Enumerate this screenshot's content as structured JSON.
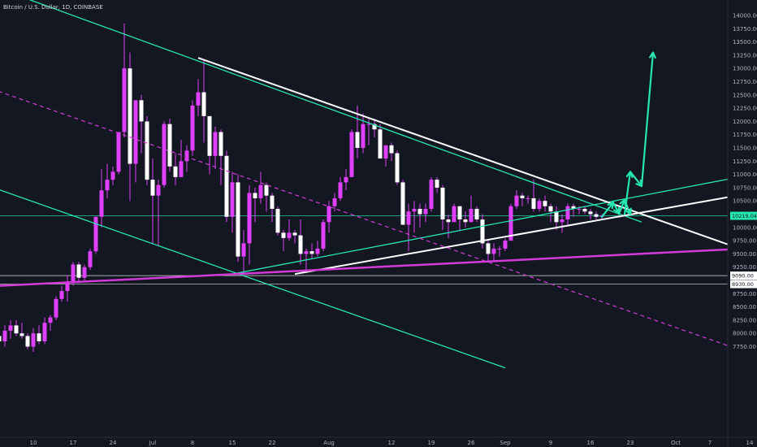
{
  "header": {
    "symbol_title": "Bitcoin / U.S. Dollar, 1D, COINBASE"
  },
  "colors": {
    "background": "#131722",
    "candle_up": "#e040fb",
    "candle_wick": "#e040fb",
    "candle_down": "#ffffff",
    "channel_line": "#26e6b0",
    "trend_white": "#ffffff",
    "trend_magenta": "#d33ad8",
    "price_tag_bg": "#ffffff",
    "price_tag_text": "#131722",
    "current_tag_bg": "#26e6b0"
  },
  "chart_data": {
    "type": "candlestick",
    "title": "Bitcoin / U.S. Dollar, 1D, COINBASE",
    "x_tick_labels": [
      "10",
      "17",
      "24",
      "Jul",
      "8",
      "15",
      "22",
      "Aug",
      "12",
      "19",
      "26",
      "Sep",
      "9",
      "16",
      "23",
      "Oct",
      "7",
      "14"
    ],
    "y_tick_labels": [
      "14000.00",
      "13750.00",
      "13500.00",
      "13250.00",
      "13000.00",
      "12750.00",
      "12500.00",
      "12250.00",
      "12000.00",
      "11750.00",
      "11500.00",
      "11250.00",
      "11000.00",
      "10750.00",
      "10500.00",
      "10250.00",
      "10000.00",
      "9750.00",
      "9500.00",
      "9250.00",
      "9000.00",
      "8750.00",
      "8500.00",
      "8250.00",
      "8000.00",
      "7750.00"
    ],
    "ylim": [
      7650,
      14150
    ],
    "price_tags": [
      {
        "label": "10219.04",
        "value": 10219.04,
        "kind": "current"
      },
      {
        "label": "9090.00",
        "value": 9090,
        "kind": "level"
      },
      {
        "label": "8930.00",
        "value": 8930,
        "kind": "level"
      }
    ],
    "horizontal_levels": [
      10219.04,
      9090,
      8930
    ],
    "candles": [
      {
        "d": "2019-06-03",
        "o": 8100,
        "h": 8250,
        "l": 7750,
        "c": 7950
      },
      {
        "d": "2019-06-04",
        "o": 7950,
        "h": 8100,
        "l": 7700,
        "c": 7850
      },
      {
        "d": "2019-06-05",
        "o": 7850,
        "h": 8150,
        "l": 7750,
        "c": 8050
      },
      {
        "d": "2019-06-06",
        "o": 8050,
        "h": 8250,
        "l": 7900,
        "c": 8150
      },
      {
        "d": "2019-06-07",
        "o": 8150,
        "h": 8250,
        "l": 7950,
        "c": 8000
      },
      {
        "d": "2019-06-08",
        "o": 8000,
        "h": 8200,
        "l": 7900,
        "c": 7950
      },
      {
        "d": "2019-06-09",
        "o": 7950,
        "h": 8000,
        "l": 7700,
        "c": 7750
      },
      {
        "d": "2019-06-10",
        "o": 7750,
        "h": 8100,
        "l": 7650,
        "c": 8000
      },
      {
        "d": "2019-06-11",
        "o": 8000,
        "h": 8150,
        "l": 7800,
        "c": 7850
      },
      {
        "d": "2019-06-12",
        "o": 7850,
        "h": 8300,
        "l": 7800,
        "c": 8200
      },
      {
        "d": "2019-06-13",
        "o": 8200,
        "h": 8350,
        "l": 8050,
        "c": 8300
      },
      {
        "d": "2019-06-14",
        "o": 8300,
        "h": 8700,
        "l": 8250,
        "c": 8650
      },
      {
        "d": "2019-06-15",
        "o": 8650,
        "h": 8900,
        "l": 8600,
        "c": 8800
      },
      {
        "d": "2019-06-16",
        "o": 8800,
        "h": 9100,
        "l": 8600,
        "c": 8950
      },
      {
        "d": "2019-06-17",
        "o": 8950,
        "h": 9350,
        "l": 8900,
        "c": 9300
      },
      {
        "d": "2019-06-18",
        "o": 9300,
        "h": 9350,
        "l": 8950,
        "c": 9050
      },
      {
        "d": "2019-06-19",
        "o": 9050,
        "h": 9300,
        "l": 9000,
        "c": 9250
      },
      {
        "d": "2019-06-20",
        "o": 9250,
        "h": 9600,
        "l": 9200,
        "c": 9550
      },
      {
        "d": "2019-06-21",
        "o": 9550,
        "h": 10200,
        "l": 9500,
        "c": 10200
      },
      {
        "d": "2019-06-22",
        "o": 10200,
        "h": 11100,
        "l": 10000,
        "c": 10700
      },
      {
        "d": "2019-06-23",
        "o": 10700,
        "h": 11200,
        "l": 10550,
        "c": 10900
      },
      {
        "d": "2019-06-24",
        "o": 10900,
        "h": 11150,
        "l": 10800,
        "c": 11050
      },
      {
        "d": "2019-06-25",
        "o": 11050,
        "h": 11800,
        "l": 11000,
        "c": 11800
      },
      {
        "d": "2019-06-26",
        "o": 11800,
        "h": 13850,
        "l": 11700,
        "c": 13000
      },
      {
        "d": "2019-06-27",
        "o": 13000,
        "h": 13300,
        "l": 10500,
        "c": 11200
      },
      {
        "d": "2019-06-28",
        "o": 11200,
        "h": 12400,
        "l": 10850,
        "c": 12400
      },
      {
        "d": "2019-06-29",
        "o": 12400,
        "h": 12500,
        "l": 11400,
        "c": 12000
      },
      {
        "d": "2019-06-30",
        "o": 12000,
        "h": 12100,
        "l": 10800,
        "c": 10900
      },
      {
        "d": "2019-07-01",
        "o": 10900,
        "h": 11300,
        "l": 9700,
        "c": 10600
      },
      {
        "d": "2019-07-02",
        "o": 10600,
        "h": 10900,
        "l": 9650,
        "c": 10800
      },
      {
        "d": "2019-07-03",
        "o": 10800,
        "h": 12000,
        "l": 10750,
        "c": 11950
      },
      {
        "d": "2019-07-04",
        "o": 11950,
        "h": 12050,
        "l": 11050,
        "c": 11150
      },
      {
        "d": "2019-07-05",
        "o": 11150,
        "h": 11400,
        "l": 10800,
        "c": 10950
      },
      {
        "d": "2019-07-06",
        "o": 10950,
        "h": 11650,
        "l": 10950,
        "c": 11250
      },
      {
        "d": "2019-07-07",
        "o": 11250,
        "h": 11550,
        "l": 11050,
        "c": 11450
      },
      {
        "d": "2019-07-08",
        "o": 11450,
        "h": 12400,
        "l": 11350,
        "c": 12300
      },
      {
        "d": "2019-07-09",
        "o": 12300,
        "h": 12800,
        "l": 12100,
        "c": 12550
      },
      {
        "d": "2019-07-10",
        "o": 12550,
        "h": 13150,
        "l": 11600,
        "c": 12100
      },
      {
        "d": "2019-07-11",
        "o": 12100,
        "h": 12100,
        "l": 11000,
        "c": 11350
      },
      {
        "d": "2019-07-12",
        "o": 11350,
        "h": 11900,
        "l": 11100,
        "c": 11800
      },
      {
        "d": "2019-07-13",
        "o": 11800,
        "h": 11850,
        "l": 10800,
        "c": 11350
      },
      {
        "d": "2019-07-14",
        "o": 11350,
        "h": 11450,
        "l": 10100,
        "c": 10200
      },
      {
        "d": "2019-07-15",
        "o": 10200,
        "h": 11050,
        "l": 9900,
        "c": 10850
      },
      {
        "d": "2019-07-16",
        "o": 10850,
        "h": 11000,
        "l": 9350,
        "c": 9450
      },
      {
        "d": "2019-07-17",
        "o": 9450,
        "h": 9950,
        "l": 9100,
        "c": 9700
      },
      {
        "d": "2019-07-18",
        "o": 9700,
        "h": 10800,
        "l": 9300,
        "c": 10650
      },
      {
        "d": "2019-07-19",
        "o": 10650,
        "h": 10750,
        "l": 10100,
        "c": 10550
      },
      {
        "d": "2019-07-20",
        "o": 10550,
        "h": 11050,
        "l": 10450,
        "c": 10800
      },
      {
        "d": "2019-07-21",
        "o": 10800,
        "h": 10850,
        "l": 10300,
        "c": 10600
      },
      {
        "d": "2019-07-22",
        "o": 10600,
        "h": 10650,
        "l": 10100,
        "c": 10350
      },
      {
        "d": "2019-07-23",
        "o": 10350,
        "h": 10400,
        "l": 9850,
        "c": 9900
      },
      {
        "d": "2019-07-24",
        "o": 9900,
        "h": 9950,
        "l": 9550,
        "c": 9800
      },
      {
        "d": "2019-07-25",
        "o": 9800,
        "h": 10150,
        "l": 9750,
        "c": 9900
      },
      {
        "d": "2019-07-26",
        "o": 9900,
        "h": 9950,
        "l": 9700,
        "c": 9850
      },
      {
        "d": "2019-07-27",
        "o": 9850,
        "h": 10150,
        "l": 9300,
        "c": 9500
      },
      {
        "d": "2019-07-28",
        "o": 9500,
        "h": 9600,
        "l": 9150,
        "c": 9550
      },
      {
        "d": "2019-07-29",
        "o": 9550,
        "h": 9700,
        "l": 9400,
        "c": 9500
      },
      {
        "d": "2019-07-30",
        "o": 9500,
        "h": 9750,
        "l": 9450,
        "c": 9600
      },
      {
        "d": "2019-07-31",
        "o": 9600,
        "h": 10150,
        "l": 9550,
        "c": 10100
      },
      {
        "d": "2019-08-01",
        "o": 10100,
        "h": 10500,
        "l": 9900,
        "c": 10400
      },
      {
        "d": "2019-08-02",
        "o": 10400,
        "h": 10650,
        "l": 10300,
        "c": 10550
      },
      {
        "d": "2019-08-03",
        "o": 10550,
        "h": 10950,
        "l": 10500,
        "c": 10850
      },
      {
        "d": "2019-08-04",
        "o": 10850,
        "h": 11100,
        "l": 10700,
        "c": 10950
      },
      {
        "d": "2019-08-05",
        "o": 10950,
        "h": 11850,
        "l": 10950,
        "c": 11800
      },
      {
        "d": "2019-08-06",
        "o": 11800,
        "h": 12300,
        "l": 11300,
        "c": 11500
      },
      {
        "d": "2019-08-07",
        "o": 11500,
        "h": 12150,
        "l": 11400,
        "c": 11950
      },
      {
        "d": "2019-08-08",
        "o": 11950,
        "h": 12050,
        "l": 11550,
        "c": 11950
      },
      {
        "d": "2019-08-09",
        "o": 11950,
        "h": 12050,
        "l": 11700,
        "c": 11850
      },
      {
        "d": "2019-08-10",
        "o": 11850,
        "h": 11950,
        "l": 11300,
        "c": 11300
      },
      {
        "d": "2019-08-11",
        "o": 11300,
        "h": 11550,
        "l": 11150,
        "c": 11550
      },
      {
        "d": "2019-08-12",
        "o": 11550,
        "h": 11600,
        "l": 11250,
        "c": 11400
      },
      {
        "d": "2019-08-13",
        "o": 11400,
        "h": 11450,
        "l": 10800,
        "c": 10850
      },
      {
        "d": "2019-08-14",
        "o": 10850,
        "h": 10900,
        "l": 10050,
        "c": 10050
      },
      {
        "d": "2019-08-15",
        "o": 10050,
        "h": 10450,
        "l": 9550,
        "c": 10300
      },
      {
        "d": "2019-08-16",
        "o": 10300,
        "h": 10500,
        "l": 9900,
        "c": 10350
      },
      {
        "d": "2019-08-17",
        "o": 10350,
        "h": 10450,
        "l": 10000,
        "c": 10250
      },
      {
        "d": "2019-08-18",
        "o": 10250,
        "h": 10450,
        "l": 10100,
        "c": 10350
      },
      {
        "d": "2019-08-19",
        "o": 10350,
        "h": 10950,
        "l": 10300,
        "c": 10900
      },
      {
        "d": "2019-08-20",
        "o": 10900,
        "h": 10950,
        "l": 10650,
        "c": 10750
      },
      {
        "d": "2019-08-21",
        "o": 10750,
        "h": 10800,
        "l": 9950,
        "c": 10150
      },
      {
        "d": "2019-08-22",
        "o": 10150,
        "h": 10250,
        "l": 9800,
        "c": 10100
      },
      {
        "d": "2019-08-23",
        "o": 10100,
        "h": 10450,
        "l": 10100,
        "c": 10400
      },
      {
        "d": "2019-08-24",
        "o": 10400,
        "h": 10400,
        "l": 9950,
        "c": 10150
      },
      {
        "d": "2019-08-25",
        "o": 10150,
        "h": 10300,
        "l": 10000,
        "c": 10100
      },
      {
        "d": "2019-08-26",
        "o": 10100,
        "h": 10600,
        "l": 10100,
        "c": 10350
      },
      {
        "d": "2019-08-27",
        "o": 10350,
        "h": 10400,
        "l": 10100,
        "c": 10150
      },
      {
        "d": "2019-08-28",
        "o": 10150,
        "h": 10250,
        "l": 9600,
        "c": 9700
      },
      {
        "d": "2019-08-29",
        "o": 9700,
        "h": 9750,
        "l": 9350,
        "c": 9500
      },
      {
        "d": "2019-08-30",
        "o": 9500,
        "h": 9700,
        "l": 9350,
        "c": 9600
      },
      {
        "d": "2019-08-31",
        "o": 9600,
        "h": 9650,
        "l": 9450,
        "c": 9600
      },
      {
        "d": "2019-09-01",
        "o": 9600,
        "h": 9800,
        "l": 9550,
        "c": 9750
      },
      {
        "d": "2019-09-02",
        "o": 9750,
        "h": 10450,
        "l": 9750,
        "c": 10400
      },
      {
        "d": "2019-09-03",
        "o": 10400,
        "h": 10700,
        "l": 10350,
        "c": 10600
      },
      {
        "d": "2019-09-04",
        "o": 10600,
        "h": 10650,
        "l": 10400,
        "c": 10550
      },
      {
        "d": "2019-09-05",
        "o": 10550,
        "h": 10600,
        "l": 10450,
        "c": 10550
      },
      {
        "d": "2019-09-06",
        "o": 10550,
        "h": 10900,
        "l": 10300,
        "c": 10350
      },
      {
        "d": "2019-09-07",
        "o": 10350,
        "h": 10550,
        "l": 10300,
        "c": 10500
      },
      {
        "d": "2019-09-08",
        "o": 10500,
        "h": 10600,
        "l": 10300,
        "c": 10400
      },
      {
        "d": "2019-09-09",
        "o": 10400,
        "h": 10450,
        "l": 10100,
        "c": 10300
      },
      {
        "d": "2019-09-10",
        "o": 10300,
        "h": 10400,
        "l": 9950,
        "c": 10100
      },
      {
        "d": "2019-09-11",
        "o": 10100,
        "h": 10250,
        "l": 9900,
        "c": 10150
      },
      {
        "d": "2019-09-12",
        "o": 10150,
        "h": 10450,
        "l": 10050,
        "c": 10400
      },
      {
        "d": "2019-09-13",
        "o": 10400,
        "h": 10450,
        "l": 10200,
        "c": 10350
      },
      {
        "d": "2019-09-14",
        "o": 10350,
        "h": 10400,
        "l": 10250,
        "c": 10350
      },
      {
        "d": "2019-09-15",
        "o": 10350,
        "h": 10400,
        "l": 10250,
        "c": 10300
      },
      {
        "d": "2019-09-16",
        "o": 10300,
        "h": 10350,
        "l": 10150,
        "c": 10250
      },
      {
        "d": "2019-09-17",
        "o": 10250,
        "h": 10300,
        "l": 10150,
        "c": 10200
      },
      {
        "d": "2019-09-18",
        "o": 10200,
        "h": 10250,
        "l": 10150,
        "c": 10219
      }
    ],
    "trendlines": [
      {
        "name": "channel-upper",
        "kind": "channel",
        "from": [
          "2019-05-30",
          14700
        ],
        "to": [
          "2019-09-25",
          10100
        ]
      },
      {
        "name": "channel-lower",
        "kind": "channel",
        "from": [
          "2019-05-30",
          10900
        ],
        "to": [
          "2019-09-01",
          7350
        ]
      },
      {
        "name": "channel-rising",
        "kind": "channel",
        "from": [
          "2019-07-15",
          9120
        ],
        "to": [
          "2019-10-17",
          11050
        ]
      },
      {
        "name": "triangle-upper",
        "kind": "white",
        "from": [
          "2019-07-09",
          13200
        ],
        "to": [
          "2019-10-17",
          9420
        ]
      },
      {
        "name": "triangle-lower",
        "kind": "white",
        "from": [
          "2019-07-26",
          9120
        ],
        "to": [
          "2019-10-17",
          10700
        ]
      },
      {
        "name": "magenta-support",
        "kind": "magenta",
        "from": [
          "2019-05-30",
          8870
        ],
        "to": [
          "2019-10-17",
          9620
        ]
      },
      {
        "name": "dashed-channel",
        "kind": "dashed",
        "from": [
          "2019-05-30",
          12750
        ],
        "to": [
          "2019-10-12",
          7700
        ]
      }
    ],
    "projection_arrows": [
      {
        "points": [
          [
            "2019-09-18",
            10200
          ],
          [
            "2019-09-20",
            10470
          ],
          [
            "2019-09-21",
            10270
          ]
        ]
      },
      {
        "points": [
          [
            "2019-09-21",
            10250
          ],
          [
            "2019-09-22",
            10520
          ],
          [
            "2019-09-23",
            10250
          ]
        ]
      },
      {
        "points": [
          [
            "2019-09-22",
            10250
          ],
          [
            "2019-09-23",
            11050
          ],
          [
            "2019-09-25",
            10780
          ]
        ]
      },
      {
        "points": [
          [
            "2019-09-25",
            10780
          ],
          [
            "2019-09-27",
            13300
          ]
        ]
      }
    ],
    "grid": false
  }
}
